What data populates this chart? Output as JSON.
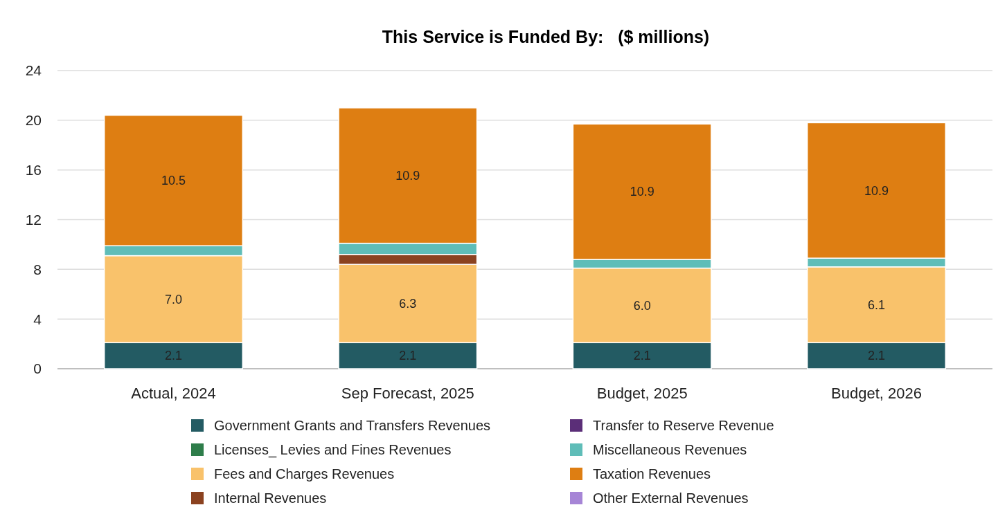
{
  "chart_data": {
    "type": "bar",
    "title": "This Service is Funded By:   ($ millions)",
    "stacked": true,
    "categories": [
      "Actual, 2024",
      "Sep Forecast, 2025",
      "Budget, 2025",
      "Budget, 2026"
    ],
    "series": [
      {
        "name": "Government Grants and Transfers Revenues",
        "color": "#235b63",
        "values": [
          2.1,
          2.1,
          2.1,
          2.1
        ],
        "value_labels": [
          "2.1",
          "2.1",
          "2.1",
          "2.1"
        ]
      },
      {
        "name": "Licenses_ Levies and Fines Revenues",
        "color": "#2e7d4a",
        "values": [
          0,
          0,
          0,
          0
        ]
      },
      {
        "name": "Fees and Charges Revenues",
        "color": "#f9c26b",
        "values": [
          7.0,
          6.3,
          6.0,
          6.1
        ],
        "value_labels": [
          "7.0",
          "6.3",
          "6.0",
          "6.1"
        ]
      },
      {
        "name": "Internal Revenues",
        "color": "#8b4220",
        "values": [
          0,
          0.8,
          0,
          0
        ]
      },
      {
        "name": "Transfer to Reserve Revenue",
        "color": "#5b2e78",
        "values": [
          0,
          0,
          0,
          0
        ]
      },
      {
        "name": "Miscellaneous Revenues",
        "color": "#5fbdb8",
        "values": [
          0.8,
          0.9,
          0.7,
          0.7
        ]
      },
      {
        "name": "Taxation Revenues",
        "color": "#de7e12",
        "values": [
          10.5,
          10.9,
          10.9,
          10.9
        ],
        "value_labels": [
          "10.5",
          "10.9",
          "10.9",
          "10.9"
        ]
      },
      {
        "name": "Other External Revenues",
        "color": "#a685d6",
        "values": [
          0,
          0,
          0,
          0
        ]
      }
    ],
    "ylim": [
      0,
      24
    ],
    "yticks": [
      0,
      4,
      8,
      12,
      16,
      20,
      24
    ],
    "grid": "y",
    "legend": "bottom"
  }
}
